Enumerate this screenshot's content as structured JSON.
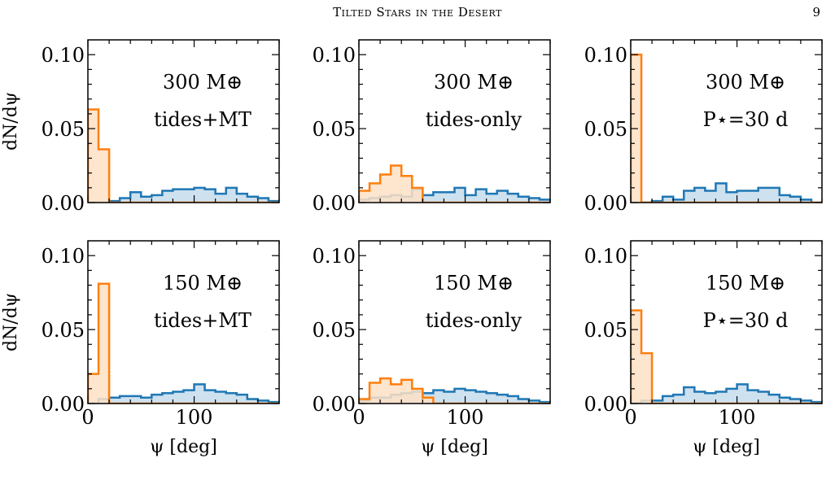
{
  "header": {
    "title": "Tilted Stars in the Desert",
    "page_number": "9"
  },
  "colors": {
    "blue": "#1f77b4",
    "blue_fill": "#c6dcec",
    "orange": "#ff7f0e",
    "orange_fill": "#fde0c5"
  },
  "chart_data": [
    {
      "type": "histogram",
      "row": 0,
      "col": 0,
      "annotation": [
        "300 M⊕",
        "tides+MT"
      ],
      "ylabel": "dN/dψ",
      "xlabel": "",
      "xlim": [
        0,
        180
      ],
      "ylim": [
        0,
        0.11
      ],
      "xticks": [],
      "yticks": [
        "0.00",
        "0.05",
        "0.10"
      ],
      "bin_edges": [
        0,
        10,
        20,
        30,
        40,
        50,
        60,
        70,
        80,
        90,
        100,
        110,
        120,
        130,
        140,
        150,
        160,
        170,
        180
      ],
      "series": [
        {
          "color": "blue",
          "values": [
            0,
            0,
            0.001,
            0.003,
            0.007,
            0.004,
            0.005,
            0.008,
            0.009,
            0.009,
            0.01,
            0.009,
            0.006,
            0.01,
            0.006,
            0.004,
            0.003,
            0.001
          ]
        },
        {
          "color": "orange",
          "values": [
            0.063,
            0.036,
            0,
            0,
            0,
            0,
            0,
            0,
            0,
            0,
            0,
            0,
            0,
            0,
            0,
            0,
            0,
            0
          ]
        }
      ]
    },
    {
      "type": "histogram",
      "row": 0,
      "col": 1,
      "annotation": [
        "300 M⊕",
        "tides-only"
      ],
      "ylabel": "",
      "xlabel": "",
      "xlim": [
        0,
        180
      ],
      "ylim": [
        0,
        0.11
      ],
      "xticks": [],
      "yticks": [
        "0.00",
        "0.05",
        "0.10"
      ],
      "bin_edges": [
        0,
        10,
        20,
        30,
        40,
        50,
        60,
        70,
        80,
        90,
        100,
        110,
        120,
        130,
        140,
        150,
        160,
        170,
        180
      ],
      "series": [
        {
          "color": "blue",
          "values": [
            0.002,
            0.003,
            0.004,
            0.005,
            0.004,
            0.009,
            0.005,
            0.007,
            0.007,
            0.01,
            0.005,
            0.009,
            0.006,
            0.008,
            0.006,
            0.004,
            0.003,
            0.002
          ]
        },
        {
          "color": "orange",
          "values": [
            0.008,
            0.013,
            0.019,
            0.025,
            0.018,
            0.01,
            0,
            0,
            0,
            0,
            0,
            0,
            0,
            0,
            0,
            0,
            0,
            0
          ]
        }
      ]
    },
    {
      "type": "histogram",
      "row": 0,
      "col": 2,
      "annotation": [
        "300 M⊕",
        "P⋆=30 d"
      ],
      "ylabel": "",
      "xlabel": "",
      "xlim": [
        0,
        180
      ],
      "ylim": [
        0,
        0.11
      ],
      "xticks": [],
      "yticks": [
        "0.00",
        "0.05",
        "0.10"
      ],
      "bin_edges": [
        0,
        10,
        20,
        30,
        40,
        50,
        60,
        70,
        80,
        90,
        100,
        110,
        120,
        130,
        140,
        150,
        160,
        170,
        180
      ],
      "series": [
        {
          "color": "blue",
          "values": [
            0,
            0,
            0.001,
            0.004,
            0.002,
            0.008,
            0.01,
            0.008,
            0.013,
            0.007,
            0.008,
            0.008,
            0.01,
            0.01,
            0.005,
            0.004,
            0.002,
            0
          ]
        },
        {
          "color": "orange",
          "values": [
            0.1,
            0,
            0,
            0,
            0,
            0,
            0,
            0,
            0,
            0,
            0,
            0,
            0,
            0,
            0,
            0,
            0,
            0
          ]
        }
      ]
    },
    {
      "type": "histogram",
      "row": 1,
      "col": 0,
      "annotation": [
        "150 M⊕",
        "tides+MT"
      ],
      "ylabel": "dN/dψ",
      "xlabel": "ψ [deg]",
      "xlim": [
        0,
        180
      ],
      "ylim": [
        0,
        0.11
      ],
      "xticks": [
        "0",
        "100"
      ],
      "yticks": [
        "0.00",
        "0.05",
        "0.10"
      ],
      "bin_edges": [
        0,
        10,
        20,
        30,
        40,
        50,
        60,
        70,
        80,
        90,
        100,
        110,
        120,
        130,
        140,
        150,
        160,
        170,
        180
      ],
      "series": [
        {
          "color": "blue",
          "values": [
            0,
            0.003,
            0.004,
            0.005,
            0.005,
            0.004,
            0.006,
            0.007,
            0.008,
            0.009,
            0.013,
            0.009,
            0.008,
            0.007,
            0.006,
            0.003,
            0.002,
            0.001
          ]
        },
        {
          "color": "orange",
          "values": [
            0.02,
            0.081,
            0,
            0,
            0,
            0,
            0,
            0,
            0,
            0,
            0,
            0,
            0,
            0,
            0,
            0,
            0,
            0
          ]
        }
      ]
    },
    {
      "type": "histogram",
      "row": 1,
      "col": 1,
      "annotation": [
        "150 M⊕",
        "tides-only"
      ],
      "ylabel": "",
      "xlabel": "ψ [deg]",
      "xlim": [
        0,
        180
      ],
      "ylim": [
        0,
        0.11
      ],
      "xticks": [
        "0",
        "100"
      ],
      "yticks": [
        "0.00",
        "0.05",
        "0.10"
      ],
      "bin_edges": [
        0,
        10,
        20,
        30,
        40,
        50,
        60,
        70,
        80,
        90,
        100,
        110,
        120,
        130,
        140,
        150,
        160,
        170,
        180
      ],
      "series": [
        {
          "color": "blue",
          "values": [
            0.002,
            0.004,
            0.004,
            0.006,
            0.007,
            0.008,
            0.007,
            0.009,
            0.008,
            0.01,
            0.009,
            0.008,
            0.007,
            0.006,
            0.005,
            0.003,
            0.002,
            0.001
          ]
        },
        {
          "color": "orange",
          "values": [
            0.003,
            0.014,
            0.017,
            0.013,
            0.016,
            0.01,
            0.004,
            0,
            0,
            0,
            0,
            0,
            0,
            0,
            0,
            0,
            0,
            0
          ]
        }
      ]
    },
    {
      "type": "histogram",
      "row": 1,
      "col": 2,
      "annotation": [
        "150 M⊕",
        "P⋆=30 d"
      ],
      "ylabel": "",
      "xlabel": "ψ [deg]",
      "xlim": [
        0,
        180
      ],
      "ylim": [
        0,
        0.11
      ],
      "xticks": [
        "0",
        "100"
      ],
      "yticks": [
        "0.00",
        "0.05",
        "0.10"
      ],
      "bin_edges": [
        0,
        10,
        20,
        30,
        40,
        50,
        60,
        70,
        80,
        90,
        100,
        110,
        120,
        130,
        140,
        150,
        160,
        170,
        180
      ],
      "series": [
        {
          "color": "blue",
          "values": [
            0,
            0.002,
            0.002,
            0.005,
            0.006,
            0.011,
            0.008,
            0.007,
            0.008,
            0.01,
            0.013,
            0.009,
            0.008,
            0.006,
            0.004,
            0.003,
            0.002,
            0.001
          ]
        },
        {
          "color": "orange",
          "values": [
            0.063,
            0.034,
            0,
            0,
            0,
            0,
            0,
            0,
            0,
            0,
            0,
            0,
            0,
            0,
            0,
            0,
            0,
            0
          ]
        }
      ]
    }
  ]
}
